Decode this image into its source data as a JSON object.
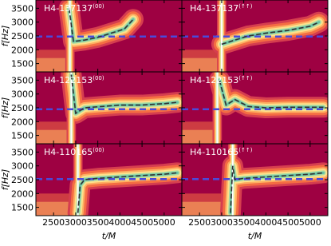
{
  "chart_data": [
    {
      "type": "line",
      "title": "H4-137137",
      "title_superscript": "(00)",
      "ylabel": "f[Hz]",
      "xlim": [
        2100,
        5400
      ],
      "ylim": [
        1200,
        3800
      ],
      "xticks": [
        2500,
        3000,
        3500,
        4000,
        4500,
        5000
      ],
      "yticks": [
        1500,
        2000,
        2500,
        3000,
        3500
      ],
      "x": [
        2850,
        2950,
        3200,
        3500,
        3800,
        4100,
        4300
      ],
      "series": [
        {
          "color": "#333333",
          "values": [
            3500,
            2300,
            2350,
            2450,
            2600,
            2750,
            3100
          ]
        }
      ],
      "hline": {
        "value": 2480,
        "color": "#4a4adb"
      },
      "vline": {
        "value": 2870,
        "color": "#ffffff"
      }
    },
    {
      "type": "line",
      "title": "H4-137137",
      "title_superscript": "(↑↑)",
      "xlim": [
        2100,
        5400
      ],
      "ylim": [
        1200,
        3800
      ],
      "xticks": [
        2500,
        3000,
        3500,
        4000,
        4500,
        5000
      ],
      "yticks": [
        1500,
        2000,
        2500,
        3000,
        3500
      ],
      "x": [
        3000,
        3100,
        3300,
        3600,
        4000,
        4500,
        5000,
        5200
      ],
      "series": [
        {
          "color": "#333333",
          "values": [
            2200,
            2250,
            2350,
            2500,
            2600,
            2700,
            2850,
            3000
          ]
        }
      ],
      "hline": {
        "value": 2480,
        "color": "#4a4adb"
      },
      "vline": {
        "value": 3000,
        "color": "#ffffff"
      }
    },
    {
      "type": "line",
      "title": "H4-122153",
      "title_superscript": "(00)",
      "ylabel": "f[Hz]",
      "xlim": [
        2100,
        5400
      ],
      "ylim": [
        1200,
        3800
      ],
      "xticks": [
        2500,
        3000,
        3500,
        4000,
        4500,
        5000
      ],
      "yticks": [
        1500,
        2000,
        2500,
        3000,
        3500
      ],
      "x": [
        2900,
        3000,
        3200,
        3600,
        4000,
        4500,
        5000,
        5300
      ],
      "series": [
        {
          "color": "#333333",
          "values": [
            3700,
            2300,
            2500,
            2550,
            2600,
            2600,
            2650,
            2700
          ]
        }
      ],
      "hline": {
        "value": 2450,
        "color": "#4a4adb"
      },
      "vline": {
        "value": 2900,
        "color": "#ffffff"
      }
    },
    {
      "type": "line",
      "title": "H4-122153",
      "title_superscript": "(↑↑)",
      "xlim": [
        2100,
        5400
      ],
      "ylim": [
        1200,
        3800
      ],
      "xticks": [
        2500,
        3000,
        3500,
        4000,
        4500,
        5000
      ],
      "yticks": [
        1500,
        2000,
        2500,
        3000,
        3500
      ],
      "x": [
        2950,
        3100,
        3300,
        3600,
        4000,
        4500,
        5000,
        5300
      ],
      "series": [
        {
          "color": "#333333",
          "values": [
            3500,
            2600,
            2800,
            2550,
            2500,
            2520,
            2520,
            2520
          ]
        }
      ],
      "hline": {
        "value": 2450,
        "color": "#4a4adb"
      },
      "vline": {
        "value": 2900,
        "color": "#ffffff"
      }
    },
    {
      "type": "line",
      "title": "H4-110165",
      "title_superscript": "(00)",
      "ylabel": "f[Hz]",
      "xlabel": "t/M",
      "xlim": [
        2100,
        5400
      ],
      "ylim": [
        1200,
        3800
      ],
      "xticks": [
        2500,
        3000,
        3500,
        4000,
        4500,
        5000
      ],
      "yticks": [
        1500,
        2000,
        2500,
        3000,
        3500
      ],
      "x": [
        3050,
        3100,
        3200,
        3500,
        4000,
        4500,
        5000,
        5300
      ],
      "series": [
        {
          "color": "#333333",
          "values": [
            1300,
            2300,
            2500,
            2550,
            2600,
            2650,
            2700,
            2750
          ]
        }
      ],
      "hline": {
        "value": 2520,
        "color": "#4a4adb"
      },
      "vline": {
        "value": 3050,
        "color": "#ffffff"
      }
    },
    {
      "type": "line",
      "title": "H4-110165",
      "title_superscript": "(↑↑)",
      "xlabel": "t/M",
      "xlim": [
        2100,
        5400
      ],
      "ylim": [
        1200,
        3800
      ],
      "xticks": [
        2500,
        3000,
        3500,
        4000,
        4500,
        5000
      ],
      "yticks": [
        1500,
        2000,
        2500,
        3000,
        3500
      ],
      "x": [
        3200,
        3250,
        3300,
        3500,
        4000,
        4500,
        5000,
        5300
      ],
      "series": [
        {
          "color": "#333333",
          "values": [
            1300,
            3000,
            2500,
            2550,
            2600,
            2650,
            2700,
            2750
          ]
        }
      ],
      "hline": {
        "value": 2520,
        "color": "#4a4adb"
      },
      "vline": {
        "value": 3250,
        "color": "#ffffff"
      }
    }
  ]
}
